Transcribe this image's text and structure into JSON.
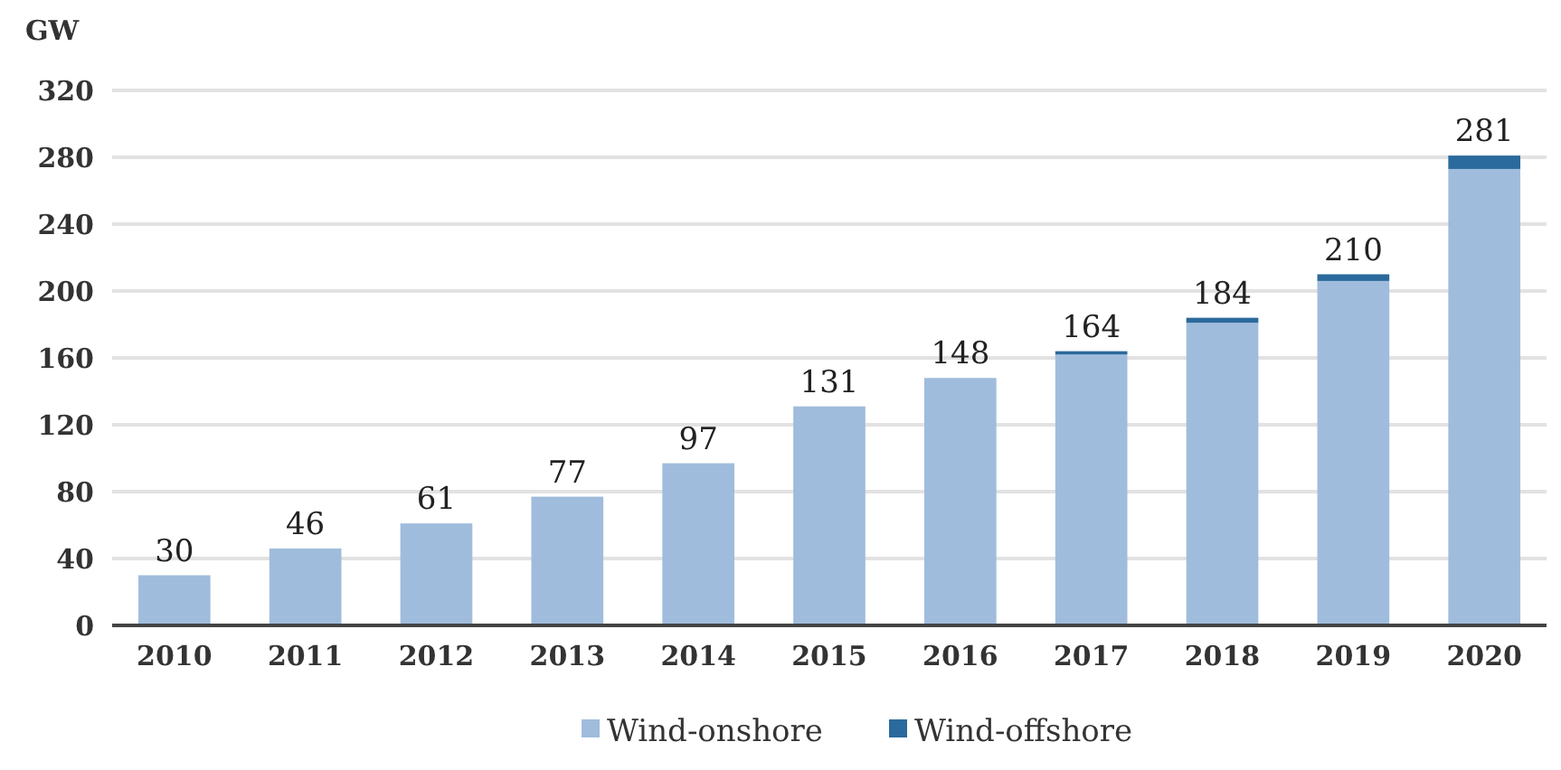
{
  "chart_data": {
    "type": "bar",
    "stacked": true,
    "ylabel": "GW",
    "categories": [
      "2010",
      "2011",
      "2012",
      "2013",
      "2014",
      "2015",
      "2016",
      "2017",
      "2018",
      "2019",
      "2020"
    ],
    "series": [
      {
        "name": "Wind-onshore",
        "color": "#a0bcdc",
        "values": [
          30,
          46,
          61,
          77,
          97,
          131,
          148,
          162,
          181,
          206,
          273
        ]
      },
      {
        "name": "Wind-offshore",
        "color": "#2b6a9c",
        "values": [
          0,
          0,
          0,
          0,
          0,
          0,
          0,
          2,
          3,
          4,
          8
        ]
      }
    ],
    "totals": [
      "30",
      "46",
      "61",
      "77",
      "97",
      "131",
      "148",
      "164",
      "184",
      "210",
      "281"
    ],
    "ylim": [
      0,
      320
    ],
    "yticks": [
      0,
      40,
      80,
      120,
      160,
      200,
      240,
      280,
      320
    ],
    "grid": "y",
    "legend": "bottom"
  }
}
